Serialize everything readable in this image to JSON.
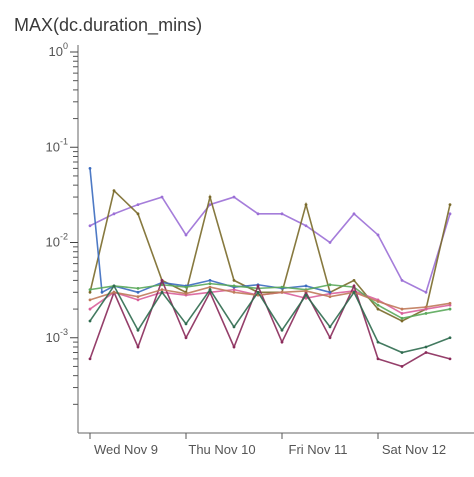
{
  "chart_data": {
    "type": "line",
    "title": "MAX(dc.duration_mins)",
    "xlabel": "",
    "ylabel": "",
    "yscale": "log",
    "ylim": [
      0.0001,
      1
    ],
    "y_ticks": [
      {
        "value": 1,
        "base": "10",
        "exp": "0"
      },
      {
        "value": 0.1,
        "base": "10",
        "exp": "-1"
      },
      {
        "value": 0.01,
        "base": "10",
        "exp": "-2"
      },
      {
        "value": 0.001,
        "base": "10",
        "exp": "-3"
      }
    ],
    "x_ticks": [
      {
        "label": "Wed Nov 9",
        "value": "2022-11-09"
      },
      {
        "label": "Thu Nov 10",
        "value": "2022-11-10"
      },
      {
        "label": "Fri Nov 11",
        "value": "2022-11-11"
      },
      {
        "label": "Sat Nov 12",
        "value": "2022-11-12"
      }
    ],
    "xlim": [
      "2022-11-08T21:00",
      "2022-11-13T00:00"
    ],
    "grid": false,
    "legend": "none",
    "series": [
      {
        "color": "#9b6fd6",
        "x": [
          "2022-11-09T00:00",
          "2022-11-09T06:00",
          "2022-11-09T12:00",
          "2022-11-09T18:00",
          "2022-11-10T00:00",
          "2022-11-10T06:00",
          "2022-11-10T12:00",
          "2022-11-10T18:00",
          "2022-11-11T00:00",
          "2022-11-11T06:00",
          "2022-11-11T12:00",
          "2022-11-11T18:00",
          "2022-11-12T00:00",
          "2022-11-12T06:00",
          "2022-11-12T12:00",
          "2022-11-12T18:00"
        ],
        "values": [
          0.015,
          0.02,
          0.025,
          0.03,
          0.012,
          0.025,
          0.03,
          0.02,
          0.02,
          0.015,
          0.01,
          0.02,
          0.012,
          0.004,
          0.003,
          0.02
        ]
      },
      {
        "color": "#7a6a2a",
        "x": [
          "2022-11-09T00:00",
          "2022-11-09T06:00",
          "2022-11-09T12:00",
          "2022-11-09T18:00",
          "2022-11-10T00:00",
          "2022-11-10T06:00",
          "2022-11-10T12:00",
          "2022-11-10T18:00",
          "2022-11-11T00:00",
          "2022-11-11T06:00",
          "2022-11-11T12:00",
          "2022-11-11T18:00",
          "2022-11-12T00:00",
          "2022-11-12T06:00",
          "2022-11-12T12:00",
          "2022-11-12T18:00"
        ],
        "values": [
          0.003,
          0.035,
          0.02,
          0.004,
          0.003,
          0.03,
          0.004,
          0.003,
          0.003,
          0.025,
          0.003,
          0.004,
          0.002,
          0.0015,
          0.002,
          0.025
        ]
      },
      {
        "color": "#d95f9a",
        "x": [
          "2022-11-09T00:00",
          "2022-11-09T06:00",
          "2022-11-09T12:00",
          "2022-11-09T18:00",
          "2022-11-10T00:00",
          "2022-11-10T06:00",
          "2022-11-10T12:00",
          "2022-11-10T18:00",
          "2022-11-11T00:00",
          "2022-11-11T06:00",
          "2022-11-11T12:00",
          "2022-11-11T18:00",
          "2022-11-12T00:00",
          "2022-11-12T06:00",
          "2022-11-12T12:00",
          "2022-11-12T18:00"
        ],
        "values": [
          0.002,
          0.003,
          0.0025,
          0.003,
          0.0028,
          0.003,
          0.0032,
          0.0028,
          0.003,
          0.0026,
          0.0029,
          0.0031,
          0.0025,
          0.0018,
          0.002,
          0.0022
        ]
      },
      {
        "color": "#3b6bbf",
        "x": [
          "2022-11-09T00:00",
          "2022-11-09T03:00",
          "2022-11-09T06:00",
          "2022-11-09T12:00",
          "2022-11-09T18:00",
          "2022-11-10T00:00",
          "2022-11-10T06:00",
          "2022-11-10T12:00",
          "2022-11-10T18:00",
          "2022-11-11T00:00",
          "2022-11-11T06:00",
          "2022-11-11T12:00"
        ],
        "values": [
          0.06,
          0.003,
          0.0035,
          0.003,
          0.0038,
          0.0035,
          0.004,
          0.0034,
          0.0036,
          0.0033,
          0.0035,
          0.003
        ]
      },
      {
        "color": "#5aa85a",
        "x": [
          "2022-11-09T00:00",
          "2022-11-09T06:00",
          "2022-11-09T12:00",
          "2022-11-09T18:00",
          "2022-11-10T00:00",
          "2022-11-10T06:00",
          "2022-11-10T12:00",
          "2022-11-10T18:00",
          "2022-11-11T00:00",
          "2022-11-11T06:00",
          "2022-11-11T12:00",
          "2022-11-11T18:00",
          "2022-11-12T00:00",
          "2022-11-12T06:00",
          "2022-11-12T12:00",
          "2022-11-12T18:00"
        ],
        "values": [
          0.0032,
          0.0035,
          0.0033,
          0.0036,
          0.0034,
          0.0037,
          0.0035,
          0.0033,
          0.0034,
          0.0032,
          0.0036,
          0.0034,
          0.0022,
          0.0016,
          0.0018,
          0.002
        ]
      },
      {
        "color": "#8a2a5a",
        "x": [
          "2022-11-09T00:00",
          "2022-11-09T06:00",
          "2022-11-09T12:00",
          "2022-11-09T18:00",
          "2022-11-10T00:00",
          "2022-11-10T06:00",
          "2022-11-10T12:00",
          "2022-11-10T18:00",
          "2022-11-11T00:00",
          "2022-11-11T06:00",
          "2022-11-11T12:00",
          "2022-11-11T18:00",
          "2022-11-12T00:00",
          "2022-11-12T06:00",
          "2022-11-12T12:00",
          "2022-11-12T18:00"
        ],
        "values": [
          0.0006,
          0.003,
          0.0008,
          0.004,
          0.001,
          0.003,
          0.0008,
          0.0035,
          0.0009,
          0.003,
          0.001,
          0.0035,
          0.0006,
          0.0005,
          0.0007,
          0.0006
        ]
      },
      {
        "color": "#c07a5a",
        "x": [
          "2022-11-09T00:00",
          "2022-11-09T06:00",
          "2022-11-09T12:00",
          "2022-11-09T18:00",
          "2022-11-10T00:00",
          "2022-11-10T06:00",
          "2022-11-10T12:00",
          "2022-11-10T18:00",
          "2022-11-11T00:00",
          "2022-11-11T06:00",
          "2022-11-11T12:00",
          "2022-11-11T18:00",
          "2022-11-12T00:00",
          "2022-11-12T06:00",
          "2022-11-12T12:00",
          "2022-11-12T18:00"
        ],
        "values": [
          0.0025,
          0.003,
          0.0027,
          0.0032,
          0.0029,
          0.0034,
          0.003,
          0.0028,
          0.003,
          0.0031,
          0.0027,
          0.003,
          0.0024,
          0.002,
          0.0021,
          0.0023
        ]
      },
      {
        "color": "#2f6b4f",
        "x": [
          "2022-11-09T00:00",
          "2022-11-09T06:00",
          "2022-11-09T12:00",
          "2022-11-09T18:00",
          "2022-11-10T00:00",
          "2022-11-10T06:00",
          "2022-11-10T12:00",
          "2022-11-10T18:00",
          "2022-11-11T00:00",
          "2022-11-11T06:00",
          "2022-11-11T12:00",
          "2022-11-11T18:00",
          "2022-11-12T00:00",
          "2022-11-12T06:00",
          "2022-11-12T12:00",
          "2022-11-12T18:00"
        ],
        "values": [
          0.0015,
          0.0035,
          0.0012,
          0.003,
          0.0014,
          0.0032,
          0.0013,
          0.003,
          0.0012,
          0.0028,
          0.0013,
          0.003,
          0.0009,
          0.0007,
          0.0008,
          0.001
        ]
      }
    ]
  }
}
